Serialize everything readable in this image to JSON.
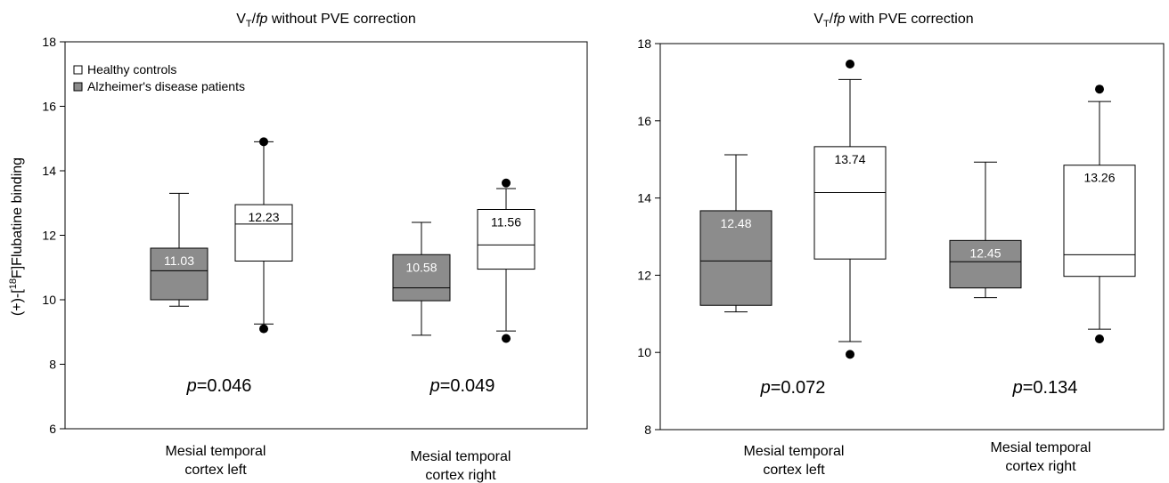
{
  "colors": {
    "ad_fill": "#8c8c8c",
    "hc_fill": "#ffffff",
    "ad_label": "#ffffff",
    "hc_label": "#000000",
    "stroke": "#000000"
  },
  "chart_data": [
    {
      "type": "box",
      "title": "V",
      "title_sub": "T",
      "title_italic": "fp",
      "title_rest": " without PVE correction",
      "ylabel": "(+)-[",
      "ylabel_sup": "18",
      "ylabel_rest": "F]Flubatine binding",
      "ylim": [
        6,
        18
      ],
      "yticks": [
        6,
        8,
        10,
        12,
        14,
        16,
        18
      ],
      "legend": {
        "placement": "top-left",
        "entries": [
          {
            "name": "Healthy controls",
            "group": "hc"
          },
          {
            "name": "Alzheimer's disease patients",
            "group": "ad"
          }
        ]
      },
      "categories": [
        {
          "line1": "Mesial  temporal",
          "line2": "cortex  left",
          "p_prefix": "p",
          "p_value": "=0.046"
        },
        {
          "line1": "Mesial temporal",
          "line2": "cortex right",
          "p_prefix": "p",
          "p_value": "=0.049"
        }
      ],
      "boxes": [
        {
          "category": 0,
          "group": "ad",
          "whisker_low": 9.8,
          "q1": 10.0,
          "median": 10.9,
          "q3": 11.6,
          "whisker_high": 13.3,
          "outliers": [],
          "mean_label": "11.03"
        },
        {
          "category": 0,
          "group": "hc",
          "whisker_low": 9.25,
          "q1": 11.2,
          "median": 12.35,
          "q3": 12.95,
          "whisker_high": 14.9,
          "outliers": [
            9.1,
            14.9
          ],
          "mean_label": "12.23"
        },
        {
          "category": 1,
          "group": "ad",
          "whisker_low": 8.9,
          "q1": 9.97,
          "median": 10.37,
          "q3": 11.4,
          "whisker_high": 12.4,
          "outliers": [],
          "mean_label": "10.58"
        },
        {
          "category": 1,
          "group": "hc",
          "whisker_low": 9.03,
          "q1": 10.95,
          "median": 11.7,
          "q3": 12.8,
          "whisker_high": 13.45,
          "outliers": [
            8.8,
            13.62
          ],
          "mean_label": "11.56"
        }
      ]
    },
    {
      "type": "box",
      "title": "V",
      "title_sub": "T",
      "title_italic": "fp",
      "title_rest": " with PVE correction",
      "ylim": [
        8,
        18
      ],
      "yticks": [
        8,
        10,
        12,
        14,
        16,
        18
      ],
      "categories": [
        {
          "line1": "Mesial  temporal",
          "line2": "cortex  left",
          "p_prefix": "p",
          "p_value": "=0.072"
        },
        {
          "line1": "Mesial temporal",
          "line2": "cortex right",
          "p_prefix": "p",
          "p_value": "=0.134"
        }
      ],
      "boxes": [
        {
          "category": 0,
          "group": "ad",
          "whisker_low": 11.05,
          "q1": 11.22,
          "median": 12.37,
          "q3": 13.67,
          "whisker_high": 15.12,
          "outliers": [],
          "mean_label": "12.48"
        },
        {
          "category": 0,
          "group": "hc",
          "whisker_low": 10.28,
          "q1": 12.42,
          "median": 14.14,
          "q3": 15.33,
          "whisker_high": 17.07,
          "outliers": [
            9.95,
            17.47
          ],
          "mean_label": "13.74"
        },
        {
          "category": 1,
          "group": "ad",
          "whisker_low": 11.42,
          "q1": 11.67,
          "median": 12.35,
          "q3": 12.9,
          "whisker_high": 14.93,
          "outliers": [],
          "mean_label": "12.45"
        },
        {
          "category": 1,
          "group": "hc",
          "whisker_low": 10.6,
          "q1": 11.97,
          "median": 12.53,
          "q3": 14.85,
          "whisker_high": 16.5,
          "outliers": [
            10.35,
            16.82
          ],
          "mean_label": "13.26"
        }
      ]
    }
  ]
}
